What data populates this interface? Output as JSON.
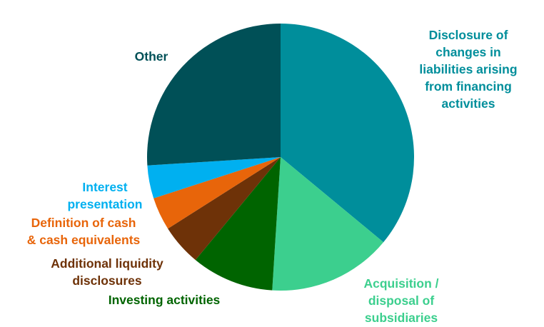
{
  "chart_data": {
    "type": "pie",
    "title": "",
    "slices": [
      {
        "label": "Disclosure of changes in liabilities arising from financing activities",
        "lines": [
          "Disclosure of",
          "changes in",
          "liabilities arising",
          "from financing",
          "activities"
        ],
        "value": 36,
        "color": "#008e9b"
      },
      {
        "label": "Acquisition / disposal of subsidiaries",
        "lines": [
          "Acquisition /",
          "disposal of",
          "subsidiaries"
        ],
        "value": 15,
        "color": "#3ccf8e"
      },
      {
        "label": "Investing activities",
        "lines": [
          "Investing activities"
        ],
        "value": 10,
        "color": "#006400"
      },
      {
        "label": "Additional liquidity disclosures",
        "lines": [
          "Additional liquidity",
          "disclosures"
        ],
        "value": 5,
        "color": "#6e3208"
      },
      {
        "label": "Definition of cash & cash equivalents",
        "lines": [
          "Definition of cash",
          "& cash equivalents"
        ],
        "value": 4,
        "color": "#e8650a"
      },
      {
        "label": "Interest presentation",
        "lines": [
          "Interest",
          "presentation"
        ],
        "value": 4,
        "color": "#00b0f0"
      },
      {
        "label": "Other",
        "lines": [
          "Other"
        ],
        "value": 26,
        "color": "#005057"
      }
    ]
  }
}
